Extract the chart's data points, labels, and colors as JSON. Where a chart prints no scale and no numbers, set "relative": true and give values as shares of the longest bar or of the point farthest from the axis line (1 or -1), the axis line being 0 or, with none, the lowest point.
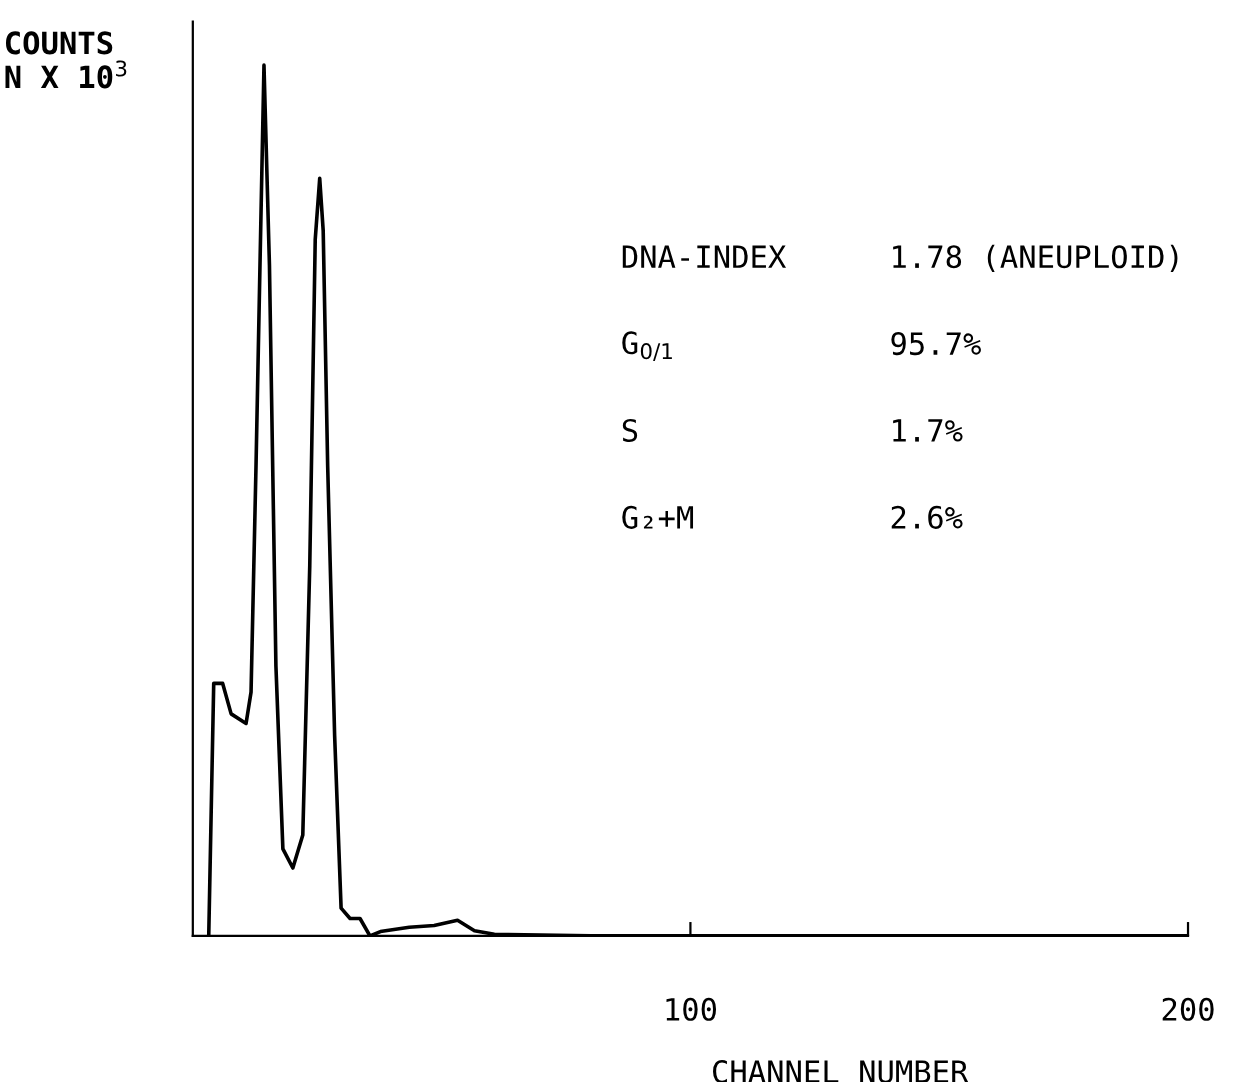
{
  "chart_data": {
    "type": "line",
    "relative": true,
    "xlabel": "CHANNEL NUMBER",
    "ylabel": "COUNTS\nN X 10$^{3}$",
    "xlim": [
      0,
      200
    ],
    "xticks": [
      100,
      200
    ],
    "grid": false,
    "legend": false,
    "marker": "none",
    "line_style": "solid",
    "annotations": [
      "DNA-INDEX",
      "1.78 (ANEUPLOID)",
      "G$_{0/1}$",
      "95.7%",
      "S",
      "1.7%",
      "G₂+M",
      "2.6%"
    ],
    "series": [
      {
        "color": "#000000",
        "x": [
          3.2,
          4.2,
          6.0,
          7.7,
          10.7,
          11.7,
          12.7,
          13.6,
          14.3,
          15.4,
          16.7,
          18.1,
          20.1,
          22.1,
          23.5,
          24.6,
          25.5,
          26.2,
          27.1,
          28.5,
          29.8,
          31.6,
          33.6,
          35.6,
          37.7,
          43.5,
          48.5,
          53.2,
          56.6,
          60.6,
          80,
          120,
          160,
          200
        ],
        "values": [
          0,
          0.29,
          0.29,
          0.255,
          0.244,
          0.28,
          0.54,
          0.8,
          1.0,
          0.77,
          0.31,
          0.1,
          0.078,
          0.116,
          0.425,
          0.8,
          0.87,
          0.81,
          0.54,
          0.23,
          0.032,
          0.02,
          0.02,
          0,
          0.005,
          0.01,
          0.012,
          0.018,
          0.006,
          0.002,
          0,
          0,
          0,
          0
        ]
      }
    ]
  }
}
